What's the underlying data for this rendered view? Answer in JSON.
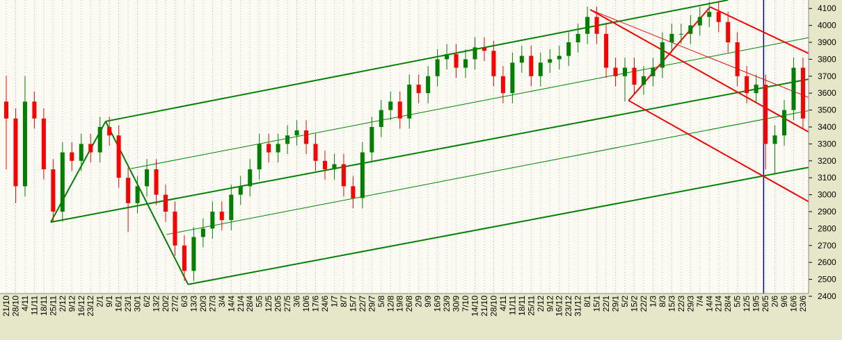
{
  "chart_data": {
    "type": "candlestick",
    "categories": [
      "21/10",
      "28/10",
      "4/11",
      "11/11",
      "18/11",
      "25/11",
      "2/12",
      "9/12",
      "16/12",
      "23/12",
      "2/1",
      "9/1",
      "16/1",
      "23/1",
      "30/1",
      "6/2",
      "13/2",
      "20/2",
      "27/2",
      "6/3",
      "13/3",
      "20/3",
      "27/3",
      "3/4",
      "14/4",
      "21/4",
      "28/4",
      "5/5",
      "12/5",
      "20/5",
      "27/5",
      "3/6",
      "10/6",
      "17/6",
      "24/6",
      "1/7",
      "8/7",
      "15/7",
      "22/7",
      "29/7",
      "5/8",
      "12/8",
      "19/8",
      "26/8",
      "2/9",
      "9/9",
      "16/9",
      "23/9",
      "30/9",
      "7/10",
      "14/10",
      "21/10",
      "28/10",
      "4/11",
      "11/11",
      "18/11",
      "25/11",
      "2/12",
      "9/12",
      "16/12",
      "23/12",
      "31/12",
      "8/1",
      "15/1",
      "22/1",
      "29/1",
      "5/2",
      "15/2",
      "22/2",
      "1/3",
      "8/3",
      "15/3",
      "22/3",
      "29/3",
      "7/4",
      "14/4",
      "21/4",
      "28/4",
      "5/5",
      "12/5",
      "19/5",
      "26/5",
      "2/6",
      "9/6",
      "16/6",
      "23/6"
    ],
    "open": [
      3550,
      3450,
      3050,
      3550,
      3450,
      3150,
      2900,
      3250,
      3200,
      3300,
      3250,
      3400,
      3350,
      3100,
      2950,
      3050,
      3150,
      3000,
      2900,
      2700,
      2550,
      2750,
      2800,
      2900,
      2850,
      3000,
      3050,
      3150,
      3300,
      3250,
      3300,
      3350,
      3380,
      3300,
      3200,
      3150,
      3180,
      3050,
      2980,
      3250,
      3400,
      3500,
      3550,
      3450,
      3650,
      3600,
      3700,
      3800,
      3830,
      3750,
      3800,
      3870,
      3850,
      3700,
      3600,
      3780,
      3820,
      3700,
      3780,
      3800,
      3820,
      3900,
      3950,
      4050,
      3950,
      3750,
      3700,
      3750,
      3650,
      3700,
      3750,
      3900,
      3950,
      3950,
      4000,
      4050,
      4080,
      4020,
      3900,
      3700,
      3600,
      3650,
      3300,
      3350,
      3500,
      3750
    ],
    "high": [
      3700,
      3510,
      3700,
      3610,
      3510,
      3210,
      3310,
      3310,
      3360,
      3360,
      3460,
      3460,
      3410,
      3160,
      3110,
      3210,
      3210,
      3060,
      2960,
      2760,
      2810,
      2860,
      2960,
      2960,
      3060,
      3110,
      3210,
      3360,
      3360,
      3360,
      3410,
      3440,
      3440,
      3360,
      3260,
      3240,
      3240,
      3110,
      3310,
      3460,
      3560,
      3610,
      3610,
      3710,
      3710,
      3760,
      3860,
      3890,
      3890,
      3860,
      3930,
      3930,
      3910,
      3760,
      3840,
      3880,
      3880,
      3840,
      3860,
      3880,
      3960,
      4010,
      4110,
      4110,
      4010,
      3810,
      3810,
      3810,
      3760,
      3810,
      3960,
      4010,
      4010,
      4060,
      4110,
      4140,
      4140,
      4080,
      3960,
      3760,
      3710,
      3710,
      3410,
      3560,
      3810,
      3810
    ],
    "low": [
      3150,
      2950,
      2990,
      3390,
      3090,
      2840,
      2840,
      3140,
      3140,
      3190,
      3190,
      3290,
      3040,
      2780,
      2890,
      2990,
      2940,
      2840,
      2640,
      2490,
      2490,
      2690,
      2740,
      2790,
      2790,
      2940,
      2990,
      3090,
      3190,
      3190,
      3240,
      3290,
      3240,
      3140,
      3090,
      3090,
      2990,
      2920,
      2920,
      3190,
      3340,
      3440,
      3390,
      3390,
      3540,
      3540,
      3640,
      3740,
      3690,
      3690,
      3740,
      3790,
      3640,
      3540,
      3540,
      3720,
      3640,
      3640,
      3720,
      3740,
      3760,
      3840,
      3890,
      3890,
      3690,
      3640,
      3550,
      3590,
      3590,
      3640,
      3690,
      3840,
      3890,
      3890,
      3940,
      3990,
      3960,
      3840,
      3640,
      3540,
      3540,
      3150,
      3120,
      3290,
      3440,
      3390
    ],
    "close": [
      3450,
      3050,
      3550,
      3450,
      3150,
      2900,
      3250,
      3200,
      3300,
      3250,
      3400,
      3350,
      3100,
      2950,
      3050,
      3150,
      3000,
      2900,
      2700,
      2550,
      2750,
      2800,
      2900,
      2850,
      3000,
      3050,
      3150,
      3300,
      3250,
      3300,
      3350,
      3380,
      3300,
      3200,
      3150,
      3180,
      3050,
      2980,
      3250,
      3400,
      3500,
      3550,
      3450,
      3650,
      3600,
      3700,
      3800,
      3830,
      3750,
      3800,
      3870,
      3850,
      3700,
      3600,
      3780,
      3820,
      3700,
      3780,
      3800,
      3820,
      3900,
      3950,
      4050,
      3950,
      3750,
      3700,
      3750,
      3650,
      3700,
      3750,
      3900,
      3950,
      3950,
      4000,
      4050,
      4080,
      4020,
      3900,
      3700,
      3600,
      3650,
      3300,
      3350,
      3500,
      3750,
      3450
    ],
    "up_color": "#008000",
    "down_color": "#ff0000",
    "ylim": [
      2400,
      4150
    ],
    "yticks": [
      2400,
      2500,
      2600,
      2700,
      2800,
      2900,
      3000,
      3100,
      3200,
      3300,
      3400,
      3500,
      3600,
      3700,
      3800,
      3900,
      4000,
      4100
    ],
    "grid": true,
    "trendlines": [
      {
        "color": "#008000",
        "width": 2,
        "from": [
          10.6,
          3433
        ],
        "to": [
          77.0,
          4150
        ]
      },
      {
        "color": "#008000",
        "width": 2,
        "from": [
          4.75,
          2838
        ],
        "to": [
          89.2,
          3720
        ]
      },
      {
        "color": "#008000",
        "width": 2,
        "from": [
          19.4,
          2470
        ],
        "to": [
          89.2,
          3199
        ]
      },
      {
        "color": "#008000",
        "width": 2,
        "from": [
          4.75,
          2838
        ],
        "to": [
          10.6,
          3433
        ]
      },
      {
        "color": "#008000",
        "width": 2,
        "from": [
          10.6,
          3433
        ],
        "to": [
          19.4,
          2470
        ]
      },
      {
        "color": "#008000",
        "width": 1,
        "from": [
          13.3,
          3154
        ],
        "to": [
          89.2,
          3966
        ]
      },
      {
        "color": "#008000",
        "width": 1,
        "from": [
          17.1,
          2765
        ],
        "to": [
          89.2,
          3535
        ]
      },
      {
        "color": "#ff0000",
        "width": 2,
        "from": [
          62.3,
          4093
        ],
        "to": [
          86.2,
          3352
        ]
      },
      {
        "color": "#ff0000",
        "width": 2,
        "from": [
          75.1,
          4109
        ],
        "to": [
          89.2,
          3740
        ]
      },
      {
        "color": "#ff0000",
        "width": 2,
        "from": [
          75.1,
          4109
        ],
        "to": [
          66.4,
          3556
        ]
      },
      {
        "color": "#ff0000",
        "width": 2,
        "from": [
          66.4,
          3556
        ],
        "to": [
          89.2,
          2847
        ]
      },
      {
        "color": "#ff0000",
        "width": 1,
        "from": [
          62.3,
          4093
        ],
        "to": [
          89.2,
          3494
        ]
      }
    ],
    "vlines": [
      {
        "x": 80.8,
        "color": "#0000a0"
      }
    ]
  }
}
